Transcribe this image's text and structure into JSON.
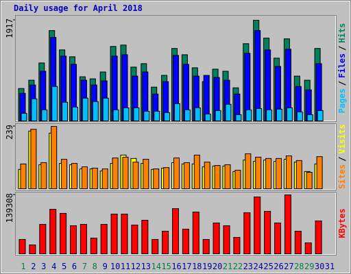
{
  "chart_data": {
    "type": "bar",
    "title": "Daily usage for April 2018",
    "categories": [
      "1",
      "2",
      "3",
      "4",
      "5",
      "6",
      "7",
      "8",
      "9",
      "10",
      "11",
      "12",
      "13",
      "14",
      "15",
      "16",
      "17",
      "18",
      "19",
      "20",
      "21",
      "22",
      "23",
      "24",
      "25",
      "26",
      "27",
      "28",
      "29",
      "30",
      "31"
    ],
    "category_colors": [
      "#008040",
      "#0000a0",
      "#0000a0",
      "#0000a0",
      "#0000a0",
      "#0000a0",
      "#008040",
      "#008040",
      "#0000a0",
      "#0000a0",
      "#0000a0",
      "#0000a0",
      "#0000a0",
      "#008040",
      "#008040",
      "#0000a0",
      "#0000a0",
      "#0000a0",
      "#0000a0",
      "#0000a0",
      "#008040",
      "#008040",
      "#0000a0",
      "#0000a0",
      "#0000a0",
      "#0000a0",
      "#0000a0",
      "#008040",
      "#008040",
      "#0000a0",
      "#0000a0"
    ],
    "legend_separator": "/",
    "panels": [
      {
        "ylim": [
          0,
          1917
        ],
        "yticks": [
          1917
        ],
        "series": [
          {
            "name": "Hits",
            "color": "#00805c",
            "values": [
              617,
              775,
              1103,
              1720,
              1352,
              1221,
              840,
              801,
              932,
              1418,
              1444,
              1024,
              1090,
              643,
              867,
              1379,
              1260,
              1011,
              748,
              985,
              945,
              630,
              1470,
              1917,
              1576,
              1195,
              1562,
              853,
              775,
              1379,
              null
            ]
          },
          {
            "name": "Files",
            "color": "#0000ff",
            "values": [
              525,
              683,
              945,
              1589,
              1234,
              1077,
              775,
              683,
              762,
              1234,
              1260,
              853,
              932,
              512,
              748,
              1247,
              1077,
              853,
              867,
              827,
              775,
              512,
              1287,
              1720,
              1352,
              1037,
              1365,
              656,
              591,
              1090,
              null
            ]
          },
          {
            "name": "Pages",
            "color": "#00c0ff",
            "values": [
              144,
              420,
              210,
              656,
              355,
              263,
              433,
              368,
              433,
              210,
              249,
              249,
              184,
              184,
              158,
              328,
              210,
              249,
              131,
              197,
              315,
              118,
              210,
              236,
              210,
              223,
              249,
              171,
              118,
              197,
              null
            ]
          }
        ]
      },
      {
        "ylim": [
          0,
          239
        ],
        "yticks": [
          239
        ],
        "series": [
          {
            "name": "Visits",
            "color": "#ffff00",
            "values": [
              74,
              221,
              92,
              213,
              97,
              92,
              76,
              76,
              68,
              97,
              129,
              116,
              97,
              74,
              79,
              100,
              95,
              95,
              84,
              87,
              87,
              66,
              110,
              105,
              110,
              105,
              113,
              102,
              66,
              95,
              null
            ]
          },
          {
            "name": "Sites",
            "color": "#ff8000",
            "values": [
              95,
              228,
              100,
              239,
              113,
              97,
              84,
              79,
              76,
              118,
              121,
              102,
              113,
              76,
              81,
              118,
              100,
              129,
              102,
              89,
              92,
              71,
              134,
              121,
              116,
              116,
              126,
              108,
              63,
              123,
              null
            ]
          }
        ]
      },
      {
        "ylim": [
          0,
          139308
        ],
        "yticks": [
          139308
        ],
        "series": [
          {
            "name": "KBytes",
            "color": "#ff0000",
            "values": [
              34020,
              21060,
              69660,
              105300,
              95580,
              66420,
              69660,
              37260,
              69660,
              93960,
              93960,
              68040,
              79380,
              34020,
              53460,
              106920,
              58320,
              98820,
              34020,
              72900,
              66420,
              38880,
              97200,
              134460,
              100440,
              72900,
              139308,
              53460,
              25920,
              77760,
              null
            ]
          }
        ]
      }
    ]
  }
}
